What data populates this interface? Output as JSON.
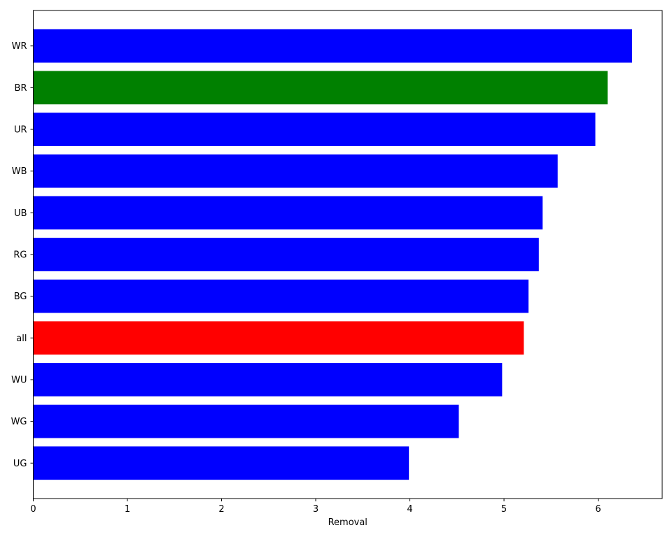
{
  "chart_data": {
    "type": "bar",
    "orientation": "horizontal",
    "categories": [
      "WR",
      "BR",
      "UR",
      "WB",
      "UB",
      "RG",
      "BG",
      "all",
      "WU",
      "WG",
      "UG"
    ],
    "values": [
      6.36,
      6.1,
      5.97,
      5.57,
      5.41,
      5.37,
      5.26,
      5.21,
      4.98,
      4.52,
      3.99
    ],
    "colors": [
      "#0000ff",
      "#008000",
      "#0000ff",
      "#0000ff",
      "#0000ff",
      "#0000ff",
      "#0000ff",
      "#ff0000",
      "#0000ff",
      "#0000ff",
      "#0000ff"
    ],
    "xlabel": "Removal",
    "ylabel": "",
    "xlim": [
      0,
      6.68
    ],
    "xticks": [
      0,
      1,
      2,
      3,
      4,
      5,
      6
    ],
    "grid": false,
    "legend": false
  }
}
